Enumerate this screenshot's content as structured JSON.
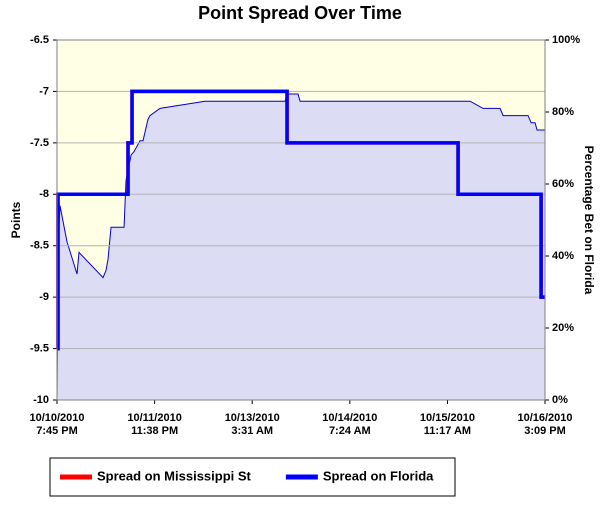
{
  "chart_data": {
    "type": "line",
    "title": "Point Spread Over Time",
    "y_label": "Points",
    "y2_label": "Percentage Bet on Florida",
    "xlim": [
      "2010-10-10T19:45",
      "2010-10-16T15:09"
    ],
    "xticks": [
      {
        "value": "2010-10-10T19:45",
        "label": "10/10/2010\n7:45 PM"
      },
      {
        "value": "2010-10-11T23:38",
        "label": "10/11/2010\n11:38 PM"
      },
      {
        "value": "2010-10-13T03:31",
        "label": "10/13/2010\n3:31 AM"
      },
      {
        "value": "2010-10-14T07:24",
        "label": "10/14/2010\n7:24 AM"
      },
      {
        "value": "2010-10-15T11:17",
        "label": "10/15/2010\n11:17 AM"
      },
      {
        "value": "2010-10-16T15:09",
        "label": "10/16/2010\n3:09 PM"
      }
    ],
    "ylim": [
      -10,
      -6.5
    ],
    "yticks": [
      -10,
      -9.5,
      -9,
      -8.5,
      -8,
      -7.5,
      -7,
      -6.5
    ],
    "y2lim": [
      0,
      100
    ],
    "y2ticks": [
      {
        "value": 0,
        "label": "0%"
      },
      {
        "value": 20,
        "label": "20%"
      },
      {
        "value": 40,
        "label": "40%"
      },
      {
        "value": 60,
        "label": "60%"
      },
      {
        "value": 80,
        "label": "80%"
      },
      {
        "value": 100,
        "label": "100%"
      }
    ],
    "grid": true,
    "background": "#ffffe6",
    "legend": "bottom",
    "series": [
      {
        "type": "area",
        "axis": "y2",
        "color": "#0000cc",
        "fill": "#dcdcf5",
        "x": [
          "2010-10-10T19:45",
          "2010-10-10T20:02",
          "2010-10-10T20:36",
          "2010-10-10T22:36",
          "2010-10-11T01:28",
          "2010-10-11T02:02",
          "2010-10-11T08:54",
          "2010-10-11T09:45",
          "2010-10-11T10:19",
          "2010-10-11T11:11",
          "2010-10-11T14:54",
          "2010-10-11T15:28",
          "2010-10-11T16:54",
          "2010-10-11T17:45",
          "2010-10-11T19:28",
          "2010-10-11T20:19",
          "2010-10-11T21:45",
          "2010-10-11T22:19",
          "2010-10-12T01:11",
          "2010-10-12T14:02",
          "2010-10-13T12:54",
          "2010-10-13T13:28",
          "2010-10-13T16:36",
          "2010-10-13T17:11",
          "2010-10-15T17:45",
          "2010-10-15T21:28",
          "2010-10-16T02:19",
          "2010-10-16T03:11",
          "2010-10-16T10:19",
          "2010-10-16T11:11",
          "2010-10-16T12:19",
          "2010-10-16T12:53",
          "2010-10-16T15:09"
        ],
        "values": [
          0,
          43,
          54,
          44,
          35,
          41,
          34,
          36,
          39,
          48,
          48,
          61,
          68,
          69,
          72,
          72,
          78,
          79,
          81,
          83,
          83,
          85,
          85,
          83,
          83,
          81,
          81,
          79,
          79,
          77,
          77,
          75,
          75
        ]
      },
      {
        "name": "Spread on Mississippi St",
        "color": "#ff0000",
        "x": [
          "2010-10-10T19:45",
          "2010-10-10T20:02",
          "2010-10-10T20:02",
          "2010-10-11T16:02",
          "2010-10-11T16:02",
          "2010-10-11T17:11",
          "2010-10-11T17:11",
          "2010-10-13T13:28",
          "2010-10-13T13:28",
          "2010-10-15T14:19",
          "2010-10-15T14:19",
          "2010-10-16T14:02",
          "2010-10-16T14:02",
          "2010-10-16T15:09"
        ],
        "values": [
          -9.5,
          -9.5,
          -8,
          -8,
          -7.5,
          -7.5,
          -7,
          -7,
          -7.5,
          -7.5,
          -8,
          -8,
          -9,
          -9
        ]
      },
      {
        "name": "Spread on Florida",
        "color": "#0000ff",
        "x": [
          "2010-10-10T19:45",
          "2010-10-10T20:02",
          "2010-10-10T20:02",
          "2010-10-11T16:02",
          "2010-10-11T16:02",
          "2010-10-11T17:11",
          "2010-10-11T17:11",
          "2010-10-13T13:28",
          "2010-10-13T13:28",
          "2010-10-15T14:19",
          "2010-10-15T14:19",
          "2010-10-16T14:02",
          "2010-10-16T14:02",
          "2010-10-16T15:09"
        ],
        "values": [
          -9.5,
          -9.5,
          -8,
          -8,
          -7.5,
          -7.5,
          -7,
          -7,
          -7.5,
          -7.5,
          -8,
          -8,
          -9,
          -9
        ]
      }
    ]
  }
}
